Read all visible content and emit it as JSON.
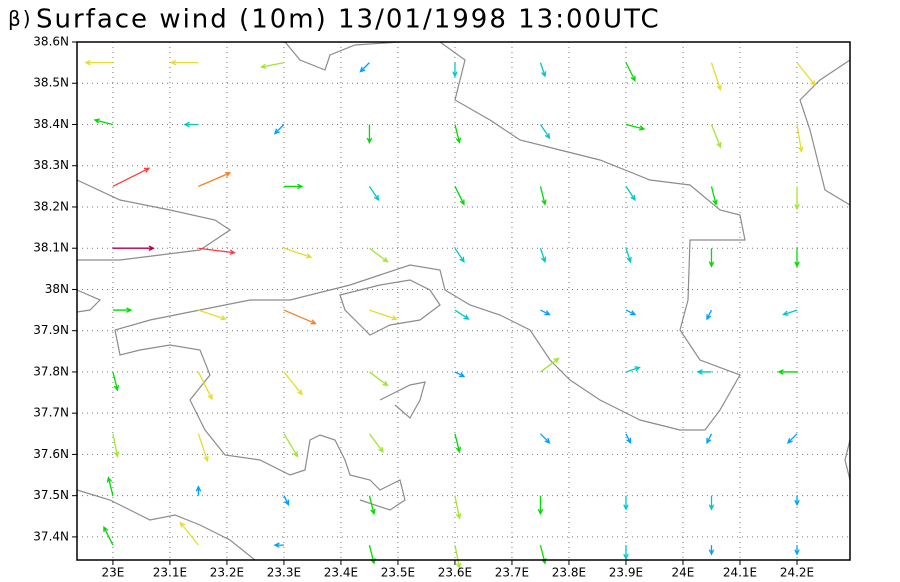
{
  "chart_data": {
    "type": "vector",
    "panel_label": "β)",
    "title": "Surface wind (10m) 13/01/1998 13:00UTC",
    "xlim": [
      22.937,
      24.293
    ],
    "ylim": [
      37.344,
      38.6
    ],
    "xticks": [
      {
        "value": 23,
        "label": "23E"
      },
      {
        "value": 23.1,
        "label": "23.1E"
      },
      {
        "value": 23.2,
        "label": "23.2E"
      },
      {
        "value": 23.3,
        "label": "23.3E"
      },
      {
        "value": 23.4,
        "label": "23.4E"
      },
      {
        "value": 23.5,
        "label": "23.5E"
      },
      {
        "value": 23.6,
        "label": "23.6E"
      },
      {
        "value": 23.7,
        "label": "23.7E"
      },
      {
        "value": 23.8,
        "label": "23.8E"
      },
      {
        "value": 23.9,
        "label": "23.9E"
      },
      {
        "value": 24,
        "label": "24E"
      },
      {
        "value": 24.1,
        "label": "24.1E"
      },
      {
        "value": 24.2,
        "label": "24.2E"
      }
    ],
    "yticks": [
      {
        "value": 37.4,
        "label": "37.4N"
      },
      {
        "value": 37.5,
        "label": "37.5N"
      },
      {
        "value": 37.6,
        "label": "37.6N"
      },
      {
        "value": 37.7,
        "label": "37.7N"
      },
      {
        "value": 37.8,
        "label": "37.8N"
      },
      {
        "value": 37.9,
        "label": "37.9N"
      },
      {
        "value": 38,
        "label": "38N"
      },
      {
        "value": 38.1,
        "label": "38.1N"
      },
      {
        "value": 38.2,
        "label": "38.2N"
      },
      {
        "value": 38.3,
        "label": "38.3N"
      },
      {
        "value": 38.4,
        "label": "38.4N"
      },
      {
        "value": 38.5,
        "label": "38.5N"
      },
      {
        "value": 38.6,
        "label": "38.6N"
      }
    ],
    "grid": true,
    "colors": [
      "#a000c8",
      "#2828e6",
      "#00a0ff",
      "#00c8c8",
      "#00dc00",
      "#a0e632",
      "#e6dc32",
      "#f08228",
      "#fa3c3c",
      "#b4004b"
    ],
    "lons": [
      23.0,
      23.15,
      23.3,
      23.45,
      23.6,
      23.75,
      23.9,
      24.05,
      24.2
    ],
    "lats": [
      38.55,
      38.4,
      38.25,
      38.1,
      37.95,
      37.8,
      37.65,
      37.5,
      37.38
    ],
    "u": [
      [
        -3,
        -3,
        -2.5,
        -1,
        0,
        0.5,
        1,
        1,
        2
      ],
      [
        -2,
        -1.5,
        -1,
        0,
        0.5,
        1,
        2,
        1,
        0.5
      ],
      [
        4,
        3.5,
        2,
        1,
        1,
        0.5,
        1,
        0.5,
        0
      ],
      [
        4.5,
        4,
        3,
        2,
        1,
        0.5,
        0.5,
        0,
        0
      ],
      [
        2,
        3,
        3.5,
        3,
        1.5,
        1,
        1,
        -0.5,
        -1.5
      ],
      [
        0.5,
        1.5,
        2,
        2,
        1,
        2,
        1.5,
        -1.5,
        -2
      ],
      [
        0.5,
        1,
        1.5,
        1.5,
        0.5,
        1,
        0.5,
        -0.5,
        -1
      ],
      [
        -0.5,
        0,
        0.5,
        0.5,
        0.5,
        0,
        0,
        0,
        0
      ],
      [
        -1,
        -2,
        -1,
        0.5,
        0.5,
        0.5,
        0,
        0,
        0
      ]
    ],
    "v": [
      [
        0,
        0,
        -0.5,
        -1,
        -1.5,
        -1.5,
        -2,
        -3,
        -2.5
      ],
      [
        0.5,
        0,
        -1,
        -2,
        -2,
        -1.5,
        -0.5,
        -2.5,
        -3
      ],
      [
        2,
        1.5,
        0,
        -1.5,
        -2,
        -2,
        -1.5,
        -2,
        -2.5
      ],
      [
        0,
        -0.5,
        -1,
        -1.5,
        -1.5,
        -1.5,
        -1.5,
        -2,
        -2
      ],
      [
        0,
        -1,
        -1.5,
        -1,
        -1,
        -0.5,
        -0.5,
        -1,
        -0.5
      ],
      [
        -2,
        -3,
        -2.5,
        -1.5,
        -0.5,
        1.5,
        0.5,
        0,
        0
      ],
      [
        -2.5,
        -3,
        -2.5,
        -2,
        -2,
        -1,
        -1,
        -1,
        -1
      ],
      [
        2,
        1,
        -1,
        -2,
        -2.5,
        -2,
        -1.5,
        -1.5,
        -1
      ],
      [
        2,
        2.5,
        0,
        -2,
        -2.5,
        -2,
        -1.5,
        -1,
        -1
      ]
    ]
  }
}
